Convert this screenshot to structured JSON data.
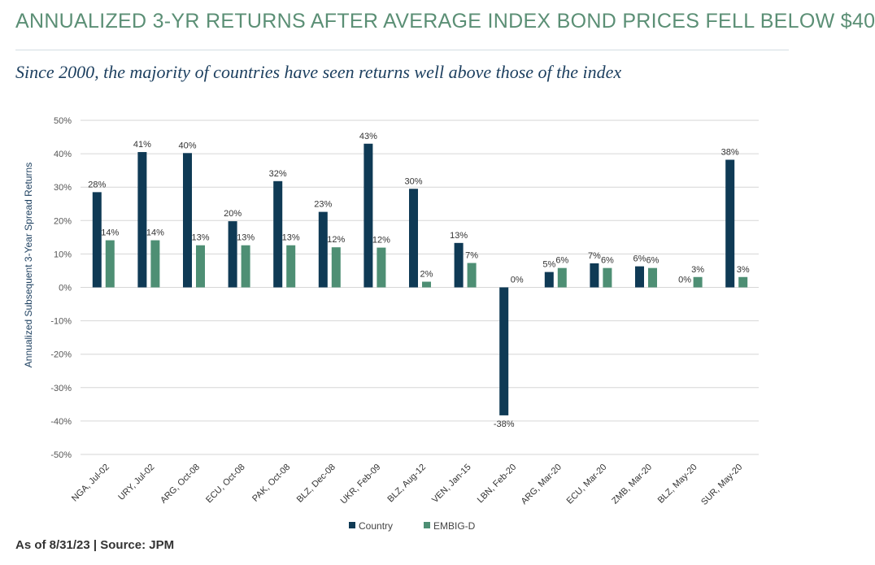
{
  "title": "ANNUALIZED 3-YR RETURNS AFTER AVERAGE INDEX BOND PRICES FELL BELOW $40",
  "subtitle": "Since 2000, the majority of countries have seen returns well above those of the index",
  "footer": "As of 8/31/23 | Source: JPM",
  "colors": {
    "country": "#0f3a55",
    "embig": "#4e8f74",
    "title": "#5b8f75",
    "subtitle": "#1c3f5f",
    "grid": "#d6d6d6"
  },
  "chart_data": {
    "type": "bar",
    "ylabel": "Annualized Subsequent 3-Year Spread Returns",
    "ylim": [
      -50,
      50
    ],
    "yticks": [
      50,
      40,
      30,
      20,
      10,
      0,
      -10,
      -20,
      -30,
      -40,
      -50
    ],
    "ytick_labels": [
      "50%",
      "40%",
      "30%",
      "20%",
      "10%",
      "0%",
      "-10%",
      "-20%",
      "-30%",
      "-40%",
      "-50%"
    ],
    "grid": true,
    "legend_position": "bottom-center",
    "categories": [
      "NGA, Jul-02",
      "URY, Jul-02",
      "ARG, Oct-08",
      "ECU, Oct-08",
      "PAK, Oct-08",
      "BLZ, Dec-08",
      "UKR, Feb-09",
      "BLZ, Aug-12",
      "VEN, Jan-15",
      "LBN, Feb-20",
      "ARG, Mar-20",
      "ECU, Mar-20",
      "ZMB, Mar-20",
      "BLZ, May-20",
      "SUR, May-20"
    ],
    "series": [
      {
        "name": "Country",
        "values": [
          28.5,
          40.5,
          40.2,
          19.8,
          31.8,
          22.6,
          43.0,
          29.5,
          13.3,
          -38.3,
          4.6,
          7.2,
          6.3,
          0,
          38.2
        ],
        "labels": [
          "28%",
          "41%",
          "40%",
          "20%",
          "32%",
          "23%",
          "43%",
          "30%",
          "13%",
          "-38%",
          "5%",
          "7%",
          "6%",
          "0%",
          "38%"
        ]
      },
      {
        "name": "EMBIG-D",
        "values": [
          14.1,
          14.1,
          12.6,
          12.6,
          12.6,
          12.0,
          11.9,
          1.7,
          7.3,
          0,
          5.8,
          5.8,
          5.8,
          3.1,
          3.1
        ],
        "labels": [
          "14%",
          "14%",
          "13%",
          "13%",
          "13%",
          "12%",
          "12%",
          "2%",
          "7%",
          "0%",
          "6%",
          "6%",
          "6%",
          "3%",
          "3%"
        ]
      }
    ]
  }
}
